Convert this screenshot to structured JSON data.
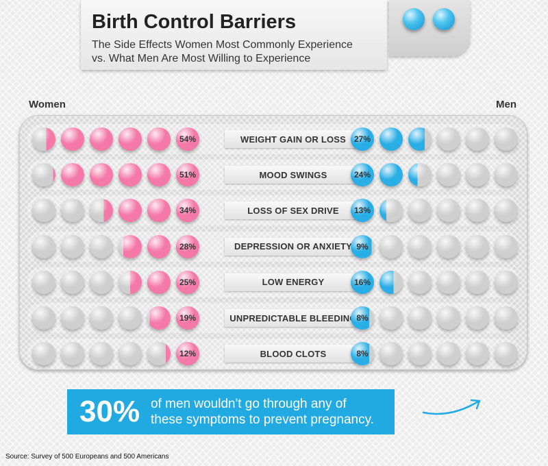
{
  "title": "Birth Control Barriers",
  "subtitle_lines": [
    "The Side Effects Women Most Commonly Experience",
    "vs. What Men Are Most Willing to Experience"
  ],
  "left_label": "Women",
  "right_label": "Men",
  "colors": {
    "women": "#f478a8",
    "men": "#2aaee6",
    "empty_pill": "#cfcfcf",
    "callout": "#21a9e1"
  },
  "chart_data": {
    "type": "bar",
    "units": "percent",
    "pills_per_side": 6,
    "percent_per_pill": 10,
    "categories": [
      "WEIGHT GAIN OR LOSS",
      "MOOD SWINGS",
      "LOSS OF SEX DRIVE",
      "DEPRESSION OR ANXIETY",
      "LOW ENERGY",
      "UNPREDICTABLE BLEEDING",
      "BLOOD CLOTS"
    ],
    "series": [
      {
        "name": "Women",
        "values": [
          54,
          51,
          34,
          28,
          25,
          19,
          12
        ],
        "labels": [
          "54%",
          "51%",
          "34%",
          "28%",
          "25%",
          "19%",
          "12%"
        ]
      },
      {
        "name": "Men",
        "values": [
          27,
          24,
          13,
          9,
          16,
          8,
          8
        ],
        "labels": [
          "27%",
          "24%",
          "13%",
          "9%",
          "16%",
          "8%",
          "8%"
        ]
      }
    ]
  },
  "callout": {
    "value": "30%",
    "text_lines": [
      "of men wouldn't go through any of",
      "these symptoms to prevent pregnancy."
    ]
  },
  "source": "Source: Survey of 500 Europeans and 500 Americans"
}
